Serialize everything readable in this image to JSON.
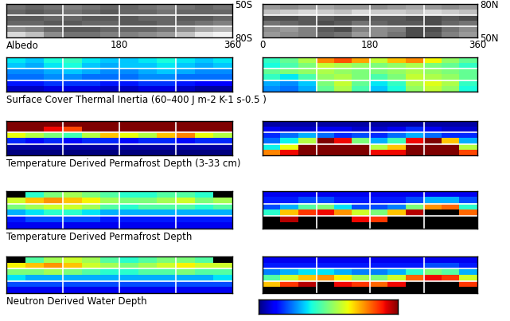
{
  "chart_data": [
    {
      "type": "heatmap",
      "title": "Albedo",
      "color": "gray",
      "xlim": [
        0,
        360
      ],
      "ylim": [
        -80,
        -50
      ],
      "xticks": [
        180,
        360
      ],
      "yticks": [
        {
          "value": -50,
          "label": "50S"
        },
        {
          "value": -80,
          "label": "80S"
        }
      ],
      "grid_lines": {
        "x": [
          90,
          180,
          270
        ],
        "y": [
          -60,
          -70
        ]
      },
      "zlim": [
        0,
        1
      ],
      "z": [
        [
          0.45,
          0.4,
          0.45,
          0.5,
          0.45,
          0.4,
          0.4,
          0.45,
          0.5,
          0.45,
          0.4,
          0.45
        ],
        [
          0.4,
          0.35,
          0.4,
          0.45,
          0.4,
          0.35,
          0.4,
          0.4,
          0.45,
          0.4,
          0.4,
          0.4
        ],
        [
          0.35,
          0.35,
          0.4,
          0.4,
          0.35,
          0.35,
          0.35,
          0.4,
          0.4,
          0.35,
          0.35,
          0.4
        ],
        [
          0.4,
          0.4,
          0.35,
          0.35,
          0.4,
          0.4,
          0.35,
          0.35,
          0.4,
          0.4,
          0.45,
          0.5
        ],
        [
          0.55,
          0.5,
          0.4,
          0.35,
          0.35,
          0.4,
          0.4,
          0.4,
          0.45,
          0.55,
          0.65,
          0.7
        ],
        [
          0.85,
          0.75,
          0.55,
          0.45,
          0.45,
          0.5,
          0.5,
          0.55,
          0.6,
          0.75,
          0.9,
          0.95
        ]
      ]
    },
    {
      "type": "heatmap",
      "color": "gray",
      "xlim": [
        0,
        360
      ],
      "ylim": [
        50,
        80
      ],
      "xticks": [
        0,
        180,
        360
      ],
      "yticks": [
        {
          "value": 80,
          "label": "80N"
        },
        {
          "value": 50,
          "label": "50N"
        }
      ],
      "grid_lines": {
        "x": [
          90,
          180,
          270
        ],
        "y": [
          60,
          70
        ]
      },
      "zlim": [
        0,
        1
      ],
      "z": [
        [
          0.6,
          0.55,
          0.6,
          0.65,
          0.6,
          0.6,
          0.55,
          0.6,
          0.65,
          0.6,
          0.55,
          0.6
        ],
        [
          0.75,
          0.8,
          0.85,
          0.8,
          0.75,
          0.85,
          0.8,
          0.8,
          0.75,
          0.85,
          0.8,
          0.75
        ],
        [
          0.3,
          0.3,
          0.35,
          0.35,
          0.3,
          0.3,
          0.35,
          0.35,
          0.3,
          0.3,
          0.35,
          0.3
        ],
        [
          0.45,
          0.4,
          0.35,
          0.3,
          0.35,
          0.45,
          0.4,
          0.35,
          0.35,
          0.3,
          0.4,
          0.45
        ],
        [
          0.55,
          0.6,
          0.5,
          0.35,
          0.3,
          0.5,
          0.55,
          0.5,
          0.3,
          0.3,
          0.45,
          0.55
        ],
        [
          0.6,
          0.55,
          0.5,
          0.4,
          0.45,
          0.6,
          0.55,
          0.45,
          0.3,
          0.35,
          0.5,
          0.6
        ]
      ]
    },
    {
      "type": "heatmap",
      "title": "Surface Cover Thermal Inertia (60–400 J m-2 K-1 s-0.5 )",
      "color": "jet",
      "xlim": [
        0,
        360
      ],
      "ylim": [
        -80,
        -50
      ],
      "tick_labels": false,
      "grid_lines": {
        "x": [
          90,
          180,
          270
        ],
        "y": [
          -60,
          -70
        ]
      },
      "zlim": [
        60,
        400
      ],
      "z": [
        [
          180,
          170,
          190,
          200,
          180,
          170,
          170,
          180,
          190,
          180,
          170,
          180
        ],
        [
          170,
          160,
          180,
          190,
          170,
          160,
          170,
          170,
          180,
          170,
          160,
          170
        ],
        [
          150,
          150,
          160,
          170,
          160,
          150,
          150,
          160,
          170,
          160,
          150,
          150
        ],
        [
          140,
          140,
          150,
          150,
          140,
          140,
          140,
          150,
          150,
          140,
          140,
          140
        ],
        [
          110,
          110,
          120,
          120,
          120,
          110,
          110,
          120,
          120,
          110,
          100,
          100
        ],
        [
          80,
          80,
          90,
          90,
          90,
          80,
          80,
          90,
          90,
          80,
          70,
          70
        ]
      ]
    },
    {
      "type": "heatmap",
      "color": "jet",
      "xlim": [
        0,
        360
      ],
      "ylim": [
        50,
        80
      ],
      "tick_labels": false,
      "grid_lines": {
        "x": [
          90,
          180,
          270
        ],
        "y": [
          60,
          70
        ]
      },
      "zlim": [
        60,
        400
      ],
      "z": [
        [
          200,
          220,
          250,
          320,
          340,
          310,
          260,
          300,
          320,
          280,
          240,
          220
        ],
        [
          190,
          210,
          230,
          260,
          250,
          240,
          230,
          240,
          250,
          230,
          220,
          200
        ],
        [
          220,
          230,
          240,
          250,
          240,
          230,
          230,
          240,
          250,
          240,
          230,
          220
        ],
        [
          200,
          180,
          210,
          240,
          250,
          230,
          210,
          230,
          260,
          250,
          240,
          220
        ],
        [
          160,
          150,
          170,
          230,
          260,
          220,
          180,
          200,
          250,
          270,
          250,
          200
        ],
        [
          150,
          140,
          160,
          220,
          250,
          210,
          170,
          190,
          240,
          260,
          240,
          190
        ]
      ]
    },
    {
      "type": "heatmap",
      "title": "Temperature Derived Permafrost Depth (3-33 cm)",
      "color": "jet",
      "xlim": [
        0,
        360
      ],
      "ylim": [
        -80,
        -50
      ],
      "tick_labels": false,
      "grid_lines": {
        "x": [
          90,
          180,
          270
        ],
        "y": [
          -60,
          -70
        ]
      },
      "zlim": [
        3,
        33
      ],
      "z": [
        [
          33,
          33,
          33,
          33,
          33,
          33,
          33,
          33,
          33,
          33,
          33,
          33
        ],
        [
          33,
          33,
          30,
          28,
          33,
          33,
          33,
          33,
          33,
          33,
          33,
          33
        ],
        [
          22,
          20,
          18,
          16,
          20,
          24,
          22,
          20,
          24,
          26,
          22,
          20
        ],
        [
          8,
          7,
          8,
          7,
          8,
          8,
          7,
          8,
          8,
          7,
          8,
          8
        ],
        [
          4,
          4,
          4,
          4,
          4,
          4,
          4,
          4,
          4,
          4,
          4,
          4
        ],
        [
          3,
          3,
          3,
          3,
          3,
          3,
          3,
          3,
          3,
          3,
          3,
          3
        ]
      ]
    },
    {
      "type": "heatmap",
      "color": "jet",
      "xlim": [
        0,
        360
      ],
      "ylim": [
        50,
        80
      ],
      "tick_labels": false,
      "grid_lines": {
        "x": [
          90,
          180,
          270
        ],
        "y": [
          60,
          70
        ]
      },
      "zlim": [
        3,
        33
      ],
      "z": [
        [
          4,
          4,
          4,
          4,
          4,
          4,
          4,
          4,
          4,
          4,
          4,
          4
        ],
        [
          6,
          5,
          5,
          6,
          6,
          5,
          5,
          6,
          8,
          6,
          5,
          5
        ],
        [
          8,
          10,
          12,
          10,
          8,
          9,
          8,
          10,
          12,
          10,
          8,
          8
        ],
        [
          10,
          14,
          20,
          33,
          30,
          18,
          12,
          16,
          30,
          33,
          24,
          12
        ],
        [
          14,
          22,
          33,
          33,
          33,
          33,
          20,
          24,
          33,
          33,
          33,
          20
        ],
        [
          26,
          30,
          33,
          33,
          33,
          33,
          30,
          30,
          33,
          33,
          33,
          28
        ]
      ]
    },
    {
      "type": "heatmap",
      "title": "Temperature Derived Permafrost Depth",
      "color": "jet",
      "xlim": [
        0,
        360
      ],
      "ylim": [
        -80,
        -50
      ],
      "tick_labels": false,
      "grid_lines": {
        "x": [
          90,
          180,
          270
        ],
        "y": [
          -60,
          -70
        ]
      },
      "zlim": [
        0,
        1
      ],
      "z": [
        [
          null,
          0.4,
          0.5,
          0.55,
          0.5,
          0.45,
          0.4,
          0.4,
          0.45,
          0.45,
          0.4,
          null
        ],
        [
          0.6,
          0.7,
          0.75,
          0.7,
          0.65,
          0.55,
          0.5,
          0.5,
          0.55,
          0.6,
          0.5,
          0.55
        ],
        [
          0.5,
          0.55,
          0.6,
          0.6,
          0.55,
          0.45,
          0.4,
          0.45,
          0.45,
          0.45,
          0.4,
          0.45
        ],
        [
          0.3,
          0.35,
          0.4,
          0.4,
          0.35,
          0.3,
          0.3,
          0.3,
          0.3,
          0.3,
          0.3,
          0.3
        ],
        [
          0.15,
          0.2,
          0.2,
          0.2,
          0.2,
          0.15,
          0.15,
          0.15,
          0.15,
          0.15,
          0.15,
          0.15
        ],
        [
          0.1,
          0.1,
          0.1,
          0.1,
          0.1,
          0.1,
          0.1,
          0.1,
          0.1,
          0.1,
          0.1,
          0.1
        ]
      ]
    },
    {
      "type": "heatmap",
      "color": "jet",
      "xlim": [
        0,
        360
      ],
      "ylim": [
        50,
        80
      ],
      "tick_labels": false,
      "grid_lines": {
        "x": [
          90,
          180,
          270
        ],
        "y": [
          60,
          70
        ]
      },
      "zlim": [
        0,
        1
      ],
      "z": [
        [
          0.1,
          0.1,
          0.1,
          0.1,
          0.1,
          0.1,
          0.1,
          0.1,
          0.1,
          0.1,
          0.1,
          0.1
        ],
        [
          0.15,
          0.15,
          0.2,
          0.2,
          0.15,
          0.15,
          0.15,
          0.15,
          0.2,
          0.3,
          0.3,
          0.2
        ],
        [
          0.2,
          0.3,
          0.45,
          0.5,
          0.35,
          0.2,
          0.2,
          0.25,
          0.5,
          0.75,
          0.8,
          0.4
        ],
        [
          0.4,
          0.7,
          0.85,
          0.9,
          0.75,
          0.6,
          0.5,
          0.7,
          0.95,
          null,
          null,
          0.8
        ],
        [
          null,
          0.95,
          null,
          null,
          null,
          0.9,
          0.85,
          null,
          null,
          null,
          null,
          null
        ],
        [
          null,
          null,
          null,
          null,
          null,
          null,
          null,
          null,
          null,
          null,
          null,
          null
        ]
      ]
    },
    {
      "type": "heatmap",
      "title": "Neutron Derived Water Depth",
      "color": "jet",
      "xlim": [
        0,
        360
      ],
      "ylim": [
        -80,
        -50
      ],
      "tick_labels": false,
      "grid_lines": {
        "x": [
          90,
          180,
          270
        ],
        "y": [
          -60,
          -70
        ]
      },
      "zlim": [
        0,
        1
      ],
      "z": [
        [
          null,
          0.45,
          0.55,
          0.6,
          0.55,
          0.45,
          0.4,
          0.45,
          0.5,
          0.5,
          0.45,
          null
        ],
        [
          0.65,
          0.7,
          0.75,
          0.7,
          0.6,
          0.55,
          0.5,
          0.55,
          0.6,
          0.65,
          0.6,
          0.6
        ],
        [
          0.5,
          0.5,
          0.55,
          0.5,
          0.45,
          0.4,
          0.4,
          0.45,
          0.45,
          0.5,
          0.45,
          0.45
        ],
        [
          0.35,
          0.3,
          0.3,
          0.3,
          0.3,
          0.3,
          0.3,
          0.3,
          0.3,
          0.3,
          0.3,
          0.35
        ],
        [
          0.2,
          0.2,
          0.2,
          0.2,
          0.2,
          0.2,
          0.2,
          0.2,
          0.2,
          0.2,
          0.2,
          0.2
        ],
        [
          0.1,
          0.1,
          0.1,
          0.1,
          0.1,
          0.1,
          0.1,
          0.1,
          0.1,
          0.1,
          0.1,
          0.1
        ]
      ]
    },
    {
      "type": "heatmap",
      "color": "jet",
      "xlim": [
        0,
        360
      ],
      "ylim": [
        50,
        80
      ],
      "tick_labels": false,
      "grid_lines": {
        "x": [
          90,
          180,
          270
        ],
        "y": [
          60,
          70
        ]
      },
      "zlim": [
        0,
        1
      ],
      "z": [
        [
          0.1,
          0.1,
          0.1,
          0.1,
          0.1,
          0.1,
          0.1,
          0.1,
          0.1,
          0.1,
          0.1,
          0.1
        ],
        [
          0.15,
          0.15,
          0.15,
          0.15,
          0.15,
          0.15,
          0.15,
          0.15,
          0.15,
          0.2,
          0.2,
          0.15
        ],
        [
          0.25,
          0.3,
          0.35,
          0.35,
          0.3,
          0.25,
          0.25,
          0.3,
          0.4,
          0.5,
          0.45,
          0.3
        ],
        [
          0.45,
          0.6,
          0.7,
          0.75,
          0.65,
          0.55,
          0.5,
          0.6,
          0.8,
          0.9,
          0.85,
          0.6
        ],
        [
          0.7,
          0.85,
          0.95,
          null,
          0.9,
          0.85,
          0.8,
          0.9,
          null,
          null,
          null,
          0.85
        ],
        [
          null,
          null,
          null,
          null,
          null,
          null,
          null,
          null,
          null,
          null,
          null,
          null
        ]
      ]
    },
    {
      "type": "colorbar",
      "color": "jet",
      "zlim": [
        0,
        1
      ],
      "tick_labels": false
    }
  ]
}
